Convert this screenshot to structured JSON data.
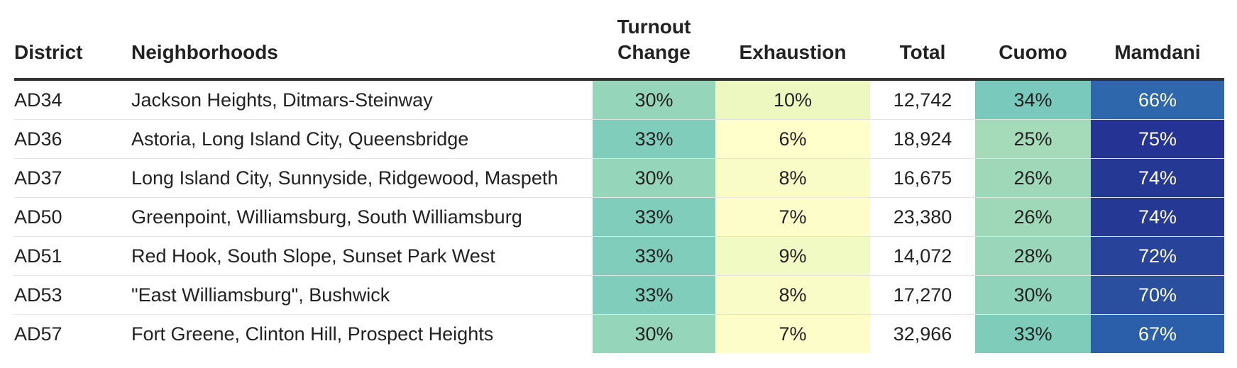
{
  "chart_data": {
    "type": "table",
    "columns": [
      "District",
      "Neighborhoods",
      "Turnout\nChange",
      "Exhaustion",
      "Total",
      "Cuomo",
      "Mamdani"
    ],
    "rows": [
      {
        "district": "AD34",
        "neighborhoods": "Jackson Heights, Ditmars-Steinway",
        "turnout_change": "30%",
        "exhaustion": "10%",
        "total": "12,742",
        "cuomo": "34%",
        "mamdani": "66%"
      },
      {
        "district": "AD36",
        "neighborhoods": "Astoria, Long Island City, Queensbridge",
        "turnout_change": "33%",
        "exhaustion": "6%",
        "total": "18,924",
        "cuomo": "25%",
        "mamdani": "75%"
      },
      {
        "district": "AD37",
        "neighborhoods": "Long Island City, Sunnyside, Ridgewood, Maspeth",
        "turnout_change": "30%",
        "exhaustion": "8%",
        "total": "16,675",
        "cuomo": "26%",
        "mamdani": "74%"
      },
      {
        "district": "AD50",
        "neighborhoods": "Greenpoint, Williamsburg, South Williamsburg",
        "turnout_change": "33%",
        "exhaustion": "7%",
        "total": "23,380",
        "cuomo": "26%",
        "mamdani": "74%"
      },
      {
        "district": "AD51",
        "neighborhoods": "Red Hook, South Slope, Sunset Park West",
        "turnout_change": "33%",
        "exhaustion": "9%",
        "total": "14,072",
        "cuomo": "28%",
        "mamdani": "72%"
      },
      {
        "district": "AD53",
        "neighborhoods": "\"East Williamsburg\", Bushwick",
        "turnout_change": "33%",
        "exhaustion": "8%",
        "total": "17,270",
        "cuomo": "30%",
        "mamdani": "70%"
      },
      {
        "district": "AD57",
        "neighborhoods": "Fort Greene, Clinton Hill, Prospect Heights",
        "turnout_change": "30%",
        "exhaustion": "7%",
        "total": "32,966",
        "cuomo": "33%",
        "mamdani": "67%"
      }
    ]
  },
  "colors": {
    "turnout_change": {
      "30%": "#95d5b9",
      "33%": "#80cdbb"
    },
    "exhaustion": {
      "10%": "#edf8c1",
      "9%": "#f2fac3",
      "8%": "#fafcc8",
      "7%": "#fdfdca",
      "6%": "#ffffcc"
    },
    "cuomo": {
      "25%": "#a5dbb8",
      "26%": "#9fd8b8",
      "28%": "#9ad6b9",
      "30%": "#8fd3ba",
      "33%": "#7fccbb",
      "34%": "#79c9bc"
    },
    "mamdani": {
      "66%": "#2f67ad",
      "67%": "#2c5fa9",
      "70%": "#2a4f9f",
      "72%": "#27449a",
      "74%": "#253894",
      "75%": "#253494"
    },
    "rule": "#333333",
    "row_divider": "#e4e4e4"
  }
}
